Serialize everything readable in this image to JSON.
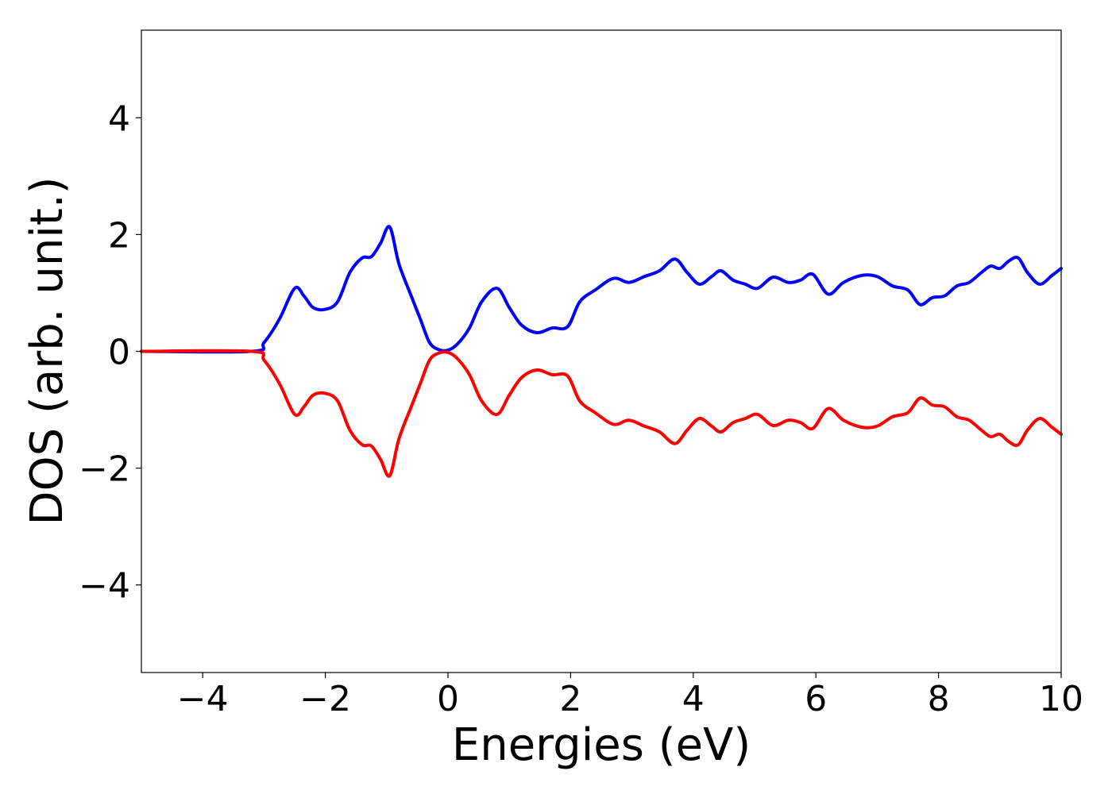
{
  "chart_data": {
    "type": "line",
    "title": "",
    "xlabel": "Energies (eV)",
    "ylabel": "DOS (arb. unit.)",
    "xlim": [
      -5,
      10
    ],
    "ylim": [
      -5.5,
      5.5
    ],
    "xticks": [
      -4,
      -2,
      0,
      2,
      4,
      6,
      8,
      10
    ],
    "yticks": [
      -4,
      -2,
      0,
      2,
      4
    ],
    "xtick_labels": [
      "−4",
      "−2",
      "0",
      "2",
      "4",
      "6",
      "8",
      "10"
    ],
    "ytick_labels": [
      "−4",
      "−2",
      "0",
      "2",
      "4"
    ],
    "grid": false,
    "legend": null,
    "series": [
      {
        "color": "#0000ff",
        "x": [
          -5.0,
          -3.2,
          -3.0,
          -2.75,
          -2.5,
          -2.35,
          -2.2,
          -2.0,
          -1.8,
          -1.6,
          -1.4,
          -1.25,
          -1.1,
          -0.95,
          -0.8,
          -0.6,
          -0.45,
          -0.3,
          -0.15,
          0.0,
          0.15,
          0.35,
          0.55,
          0.8,
          1.0,
          1.2,
          1.45,
          1.7,
          1.95,
          2.15,
          2.4,
          2.7,
          2.95,
          3.2,
          3.45,
          3.7,
          3.9,
          4.1,
          4.3,
          4.45,
          4.65,
          4.85,
          5.05,
          5.3,
          5.55,
          5.75,
          5.95,
          6.2,
          6.45,
          6.75,
          7.0,
          7.25,
          7.5,
          7.7,
          7.9,
          8.1,
          8.3,
          8.5,
          8.7,
          8.85,
          9.0,
          9.15,
          9.3,
          9.45,
          9.65,
          9.85,
          10.0
        ],
        "y": [
          0.0,
          0.0,
          0.15,
          0.55,
          1.08,
          0.95,
          0.75,
          0.72,
          0.85,
          1.35,
          1.6,
          1.62,
          1.85,
          2.13,
          1.5,
          0.95,
          0.55,
          0.15,
          0.03,
          0.02,
          0.12,
          0.4,
          0.85,
          1.08,
          0.75,
          0.45,
          0.32,
          0.4,
          0.42,
          0.85,
          1.05,
          1.25,
          1.18,
          1.28,
          1.38,
          1.58,
          1.35,
          1.15,
          1.28,
          1.38,
          1.22,
          1.15,
          1.08,
          1.27,
          1.18,
          1.22,
          1.32,
          0.98,
          1.18,
          1.3,
          1.28,
          1.12,
          1.05,
          0.8,
          0.92,
          0.95,
          1.12,
          1.18,
          1.35,
          1.46,
          1.42,
          1.55,
          1.6,
          1.35,
          1.15,
          1.3,
          1.42
        ]
      },
      {
        "color": "#ff0000",
        "x": [
          -5.0,
          -3.2,
          -3.0,
          -2.75,
          -2.5,
          -2.35,
          -2.2,
          -2.0,
          -1.8,
          -1.6,
          -1.4,
          -1.25,
          -1.1,
          -0.95,
          -0.8,
          -0.6,
          -0.45,
          -0.3,
          -0.15,
          0.0,
          0.15,
          0.35,
          0.55,
          0.8,
          1.0,
          1.2,
          1.45,
          1.7,
          1.95,
          2.15,
          2.4,
          2.7,
          2.95,
          3.2,
          3.45,
          3.7,
          3.9,
          4.1,
          4.3,
          4.45,
          4.65,
          4.85,
          5.05,
          5.3,
          5.55,
          5.75,
          5.95,
          6.2,
          6.45,
          6.75,
          7.0,
          7.25,
          7.5,
          7.7,
          7.9,
          8.1,
          8.3,
          8.5,
          8.7,
          8.85,
          9.0,
          9.15,
          9.3,
          9.45,
          9.65,
          9.85,
          10.0
        ],
        "y": [
          0.0,
          0.0,
          -0.15,
          -0.55,
          -1.08,
          -0.95,
          -0.75,
          -0.72,
          -0.85,
          -1.35,
          -1.6,
          -1.62,
          -1.85,
          -2.13,
          -1.5,
          -0.95,
          -0.55,
          -0.15,
          -0.03,
          -0.02,
          -0.12,
          -0.4,
          -0.85,
          -1.08,
          -0.75,
          -0.45,
          -0.32,
          -0.4,
          -0.42,
          -0.85,
          -1.05,
          -1.25,
          -1.18,
          -1.28,
          -1.38,
          -1.58,
          -1.35,
          -1.15,
          -1.28,
          -1.38,
          -1.22,
          -1.15,
          -1.08,
          -1.27,
          -1.18,
          -1.22,
          -1.32,
          -0.98,
          -1.18,
          -1.3,
          -1.28,
          -1.12,
          -1.05,
          -0.8,
          -0.92,
          -0.95,
          -1.12,
          -1.18,
          -1.35,
          -1.46,
          -1.42,
          -1.55,
          -1.6,
          -1.35,
          -1.15,
          -1.3,
          -1.42
        ]
      }
    ]
  }
}
